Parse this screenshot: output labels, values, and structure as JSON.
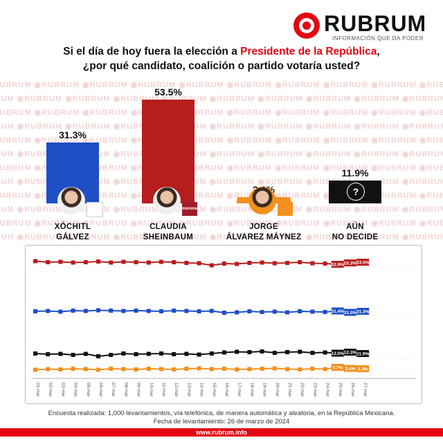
{
  "brand": {
    "name": "RUBRUM",
    "tagline": "INFORMACIÓN QUE DA PODER",
    "watermark": "RUBRUM",
    "red": "#e30613"
  },
  "title": {
    "line1_pre": "Si el día de hoy fuera la elección a ",
    "line1_highlight": "Presidente de la República",
    "line1_post": ",",
    "line2": "¿por qué candidato, coalición o partido votaría usted?"
  },
  "candidates": [
    {
      "line1": "XÓCHITL",
      "line2": "GÁLVEZ",
      "value_label": "31.3%",
      "value": 31.3,
      "color": "#1e4fc4",
      "party_icon": "fuerza-y-corazon-por-mexico-logo"
    },
    {
      "line1": "CLAUDIA",
      "line2": "SHEINBAUM",
      "value_label": "53.5%",
      "value": 53.5,
      "color": "#b61d1d",
      "party_icon": "morena-pt-pvem-logo",
      "party_text": "morena"
    },
    {
      "line1": "JORGE",
      "line2": "ÁLVAREZ MÁYNEZ",
      "value_label": "3.3%",
      "value": 3.3,
      "color": "#f3901e",
      "party_icon": "movimiento-ciudadano-logo"
    },
    {
      "line1": "AÚN",
      "line2": "NO DECIDE",
      "value_label": "11.9%",
      "value": 11.9,
      "color": "#111111",
      "party_icon": "question-mark-silhouette-icon",
      "symbol": "?"
    }
  ],
  "chart_data": [
    {
      "type": "bar",
      "categories": [
        "XÓCHITL GÁLVEZ",
        "CLAUDIA SHEINBAUM",
        "JORGE ÁLVAREZ MÁYNEZ",
        "AÚN NO DECIDE"
      ],
      "values": [
        31.3,
        53.5,
        3.3,
        11.9
      ],
      "colors": [
        "#1e4fc4",
        "#b61d1d",
        "#f3901e",
        "#111111"
      ]
    },
    {
      "type": "line",
      "x": [
        "01-mar",
        "02-mar",
        "03-mar",
        "04-mar",
        "05-mar",
        "06-mar",
        "07-mar",
        "08-mar",
        "09-mar",
        "10-mar",
        "11-mar",
        "12-mar",
        "13-mar",
        "14-mar",
        "15-mar",
        "16-mar",
        "17-mar",
        "18-mar",
        "19-mar",
        "20-mar",
        "21-mar",
        "22-mar",
        "23-mar",
        "24-mar",
        "25-mar",
        "26-mar",
        "27-mar"
      ],
      "series": [
        {
          "color": "#b61d1d",
          "values": [
            53.8,
            53.5,
            53.6,
            53.4,
            53.5,
            53.7,
            53.4,
            53.6,
            53.5,
            53.4,
            53.6,
            53.5,
            53.3,
            53.2,
            52.6,
            53.1,
            53.0,
            53.3,
            53.4,
            53.2,
            53.3,
            53.5,
            53.2,
            53.1,
            52.9,
            53.3,
            53.5
          ],
          "end_labels": [
            "52.9%",
            "53.3%",
            "53.5%"
          ]
        },
        {
          "color": "#1e4fc4",
          "values": [
            31.3,
            31.4,
            31.2,
            31.5,
            31.4,
            31.6,
            31.5,
            31.4,
            31.5,
            31.4,
            31.3,
            31.5,
            31.4,
            31.3,
            31.4,
            30.9,
            31.0,
            31.3,
            31.1,
            31.2,
            31.0,
            31.3,
            31.2,
            31.1,
            31.4,
            31.0,
            31.3
          ],
          "end_labels": [
            "31.4%",
            "31.0%",
            "31.3%"
          ]
        },
        {
          "color": "#111111",
          "values": [
            11.9,
            11.7,
            11.8,
            11.5,
            11.8,
            11.1,
            11.5,
            11.9,
            11.7,
            11.8,
            11.9,
            11.7,
            11.8,
            11.6,
            11.9,
            12.2,
            12.4,
            12.3,
            12.5,
            12.1,
            12.3,
            12.4,
            12.1,
            12.2,
            12.0,
            12.3,
            11.9
          ],
          "end_labels": [
            "12.0%",
            "12.3%",
            "11.9%"
          ]
        },
        {
          "color": "#f3901e",
          "values": [
            3.0,
            3.2,
            3.1,
            3.3,
            3.2,
            3.0,
            3.3,
            3.2,
            3.1,
            3.3,
            3.2,
            3.1,
            3.3,
            3.4,
            3.2,
            3.3,
            3.1,
            3.2,
            3.3,
            3.4,
            3.2,
            3.1,
            3.3,
            3.2,
            3.7,
            3.4,
            3.3
          ],
          "end_labels": [
            "3.7%",
            "3.4%",
            "3.3%"
          ]
        }
      ]
    }
  ],
  "footer": {
    "line1": "Encuesta realizada: 1,000 levantamientos, vía telefónica, de manera automática y aleatoria, en la República Mexicana.",
    "line2": "Fecha de levantamiento: 26 de marzo de 2024",
    "url": "www.rubrum.info"
  }
}
